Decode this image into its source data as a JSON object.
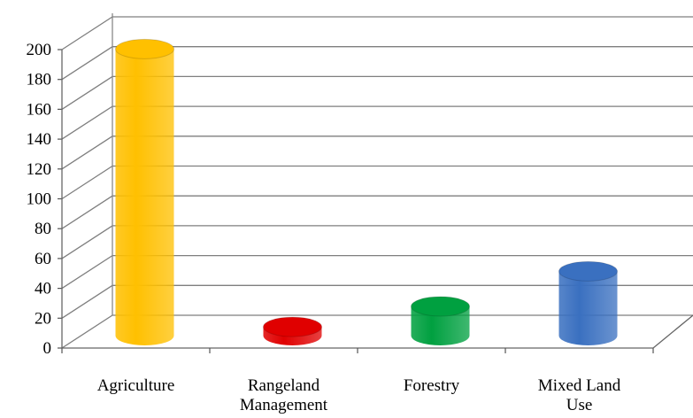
{
  "chart_data": {
    "type": "bar",
    "style": "3d-cylinder",
    "categories": [
      "Agriculture",
      "Rangeland Management",
      "Forestry",
      "Mixed Land Use"
    ],
    "category_lines": [
      [
        "Agriculture"
      ],
      [
        "Rangeland",
        "Management"
      ],
      [
        "Forestry"
      ],
      [
        "Mixed Land",
        "Use"
      ]
    ],
    "values": [
      196,
      6,
      20,
      44
    ],
    "bar_colors": [
      "#FFC000",
      "#E00000",
      "#00A040",
      "#3A70C0"
    ],
    "ylim": [
      0,
      200
    ],
    "yticks": [
      "0",
      "20",
      "40",
      "60",
      "80",
      "100",
      "120",
      "140",
      "160",
      "180",
      "200"
    ],
    "grid": true,
    "legend": "none"
  }
}
